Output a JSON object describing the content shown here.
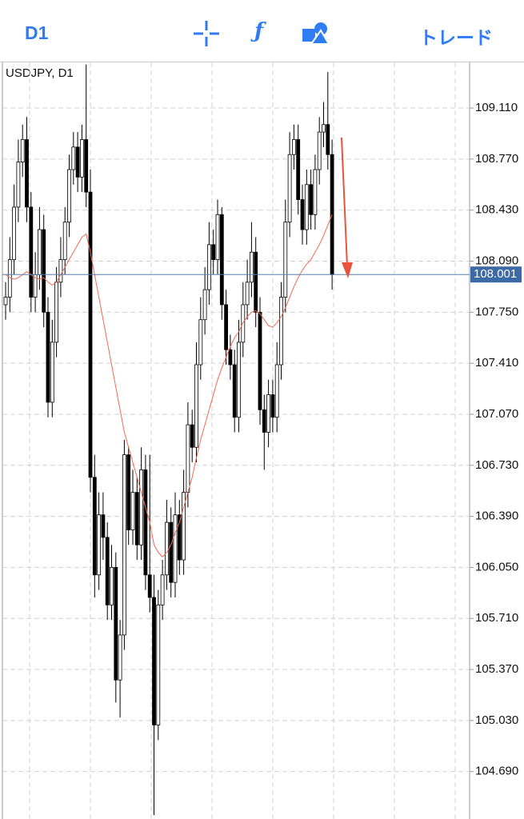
{
  "toolbar": {
    "timeframe": "D1",
    "trade": "トレード"
  },
  "chart_data": {
    "type": "candlestick",
    "title": "USDJPY, D1",
    "open": [
      107.8,
      107.85,
      108.1,
      108.45,
      108.75,
      108.9,
      108.45,
      107.85,
      108.0,
      108.3,
      107.75,
      107.15,
      107.55,
      107.95,
      108.1,
      108.35,
      108.7,
      108.85,
      108.65,
      108.9,
      108.55,
      106.65,
      106.0,
      106.4,
      106.25,
      105.8,
      106.05,
      105.3,
      105.6,
      106.8,
      106.3,
      106.55,
      106.2,
      106.7,
      106.0,
      105.85,
      105.0,
      105.8,
      106.0,
      106.35,
      105.95,
      106.4,
      106.1,
      106.55,
      107.0,
      106.85,
      107.4,
      107.7,
      107.9,
      108.2,
      108.1,
      108.4,
      107.8,
      107.5,
      107.4,
      107.05,
      107.55,
      107.8,
      107.95,
      108.15,
      107.75,
      107.1,
      106.95,
      107.2,
      107.05,
      107.4,
      107.85,
      108.35,
      108.8,
      108.9,
      108.5,
      108.3,
      108.6,
      108.4,
      108.7,
      108.95,
      109.0,
      108.8
    ],
    "high": [
      107.95,
      108.25,
      108.6,
      108.9,
      109.0,
      109.05,
      108.55,
      108.15,
      108.45,
      108.4,
      107.85,
      107.7,
      108.05,
      108.25,
      108.45,
      108.8,
      108.95,
      108.95,
      109.0,
      109.4,
      108.7,
      106.8,
      106.55,
      106.55,
      106.35,
      106.2,
      106.15,
      105.7,
      106.9,
      106.85,
      106.7,
      106.65,
      106.85,
      106.8,
      106.8,
      106.0,
      105.9,
      106.1,
      106.5,
      106.45,
      106.55,
      106.5,
      106.7,
      107.15,
      107.1,
      107.55,
      107.85,
      108.05,
      108.35,
      108.3,
      108.5,
      108.45,
      107.9,
      107.6,
      107.5,
      107.7,
      107.95,
      108.1,
      108.35,
      108.25,
      107.85,
      107.2,
      107.3,
      107.3,
      107.55,
      107.95,
      108.5,
      108.95,
      109.0,
      109.0,
      108.6,
      108.7,
      108.7,
      108.8,
      109.05,
      109.15,
      109.35,
      108.9
    ],
    "low": [
      107.7,
      107.75,
      108.0,
      108.35,
      108.65,
      108.35,
      107.75,
      107.75,
      107.9,
      107.65,
      107.05,
      107.05,
      107.45,
      107.85,
      108.0,
      108.25,
      108.6,
      108.55,
      108.55,
      108.45,
      106.55,
      105.85,
      105.9,
      106.1,
      105.7,
      105.7,
      105.15,
      105.05,
      105.5,
      106.2,
      106.2,
      106.1,
      106.1,
      105.9,
      105.75,
      104.4,
      104.9,
      105.7,
      105.9,
      105.85,
      105.85,
      106.0,
      106.0,
      106.45,
      106.75,
      106.75,
      107.3,
      107.6,
      107.8,
      108.0,
      108.0,
      107.7,
      107.4,
      107.3,
      106.95,
      106.95,
      107.45,
      107.7,
      107.85,
      107.65,
      107.0,
      106.7,
      106.85,
      106.95,
      106.95,
      107.3,
      107.75,
      108.25,
      108.7,
      108.4,
      108.2,
      108.2,
      108.3,
      108.3,
      108.6,
      108.85,
      108.7,
      107.9
    ],
    "close": [
      107.85,
      108.1,
      108.45,
      108.75,
      108.9,
      108.45,
      107.85,
      108.0,
      108.3,
      107.75,
      107.15,
      107.55,
      107.95,
      108.1,
      108.35,
      108.7,
      108.85,
      108.65,
      108.9,
      108.55,
      106.65,
      106.0,
      106.4,
      106.25,
      105.8,
      106.05,
      105.3,
      105.6,
      106.8,
      106.3,
      106.55,
      106.2,
      106.7,
      106.0,
      105.85,
      105.0,
      105.8,
      106.0,
      106.35,
      105.95,
      106.4,
      106.1,
      106.55,
      107.0,
      106.85,
      107.4,
      107.7,
      107.9,
      108.2,
      108.1,
      108.4,
      107.8,
      107.5,
      107.4,
      107.05,
      107.55,
      107.8,
      107.95,
      108.15,
      107.75,
      107.1,
      106.95,
      107.2,
      107.05,
      107.4,
      107.85,
      108.35,
      108.8,
      108.9,
      108.5,
      108.3,
      108.6,
      108.4,
      108.7,
      108.95,
      109.0,
      108.8,
      108.0
    ],
    "ma": {
      "color": "#f06a50",
      "values": [
        108.0,
        107.98,
        107.97,
        107.98,
        108.0,
        108.02,
        108.0,
        107.98,
        107.97,
        107.98,
        107.95,
        107.93,
        107.95,
        108.0,
        108.05,
        108.1,
        108.15,
        108.2,
        108.25,
        108.27,
        108.15,
        108.0,
        107.85,
        107.7,
        107.55,
        107.4,
        107.25,
        107.1,
        106.95,
        106.85,
        106.75,
        106.65,
        106.55,
        106.45,
        106.35,
        106.2,
        106.15,
        106.12,
        106.15,
        106.2,
        106.28,
        106.35,
        106.45,
        106.55,
        106.65,
        106.78,
        106.9,
        107.0,
        107.1,
        107.2,
        107.3,
        107.38,
        107.45,
        107.52,
        107.58,
        107.62,
        107.68,
        107.72,
        107.75,
        107.76,
        107.74,
        107.7,
        107.66,
        107.65,
        107.68,
        107.72,
        107.78,
        107.85,
        107.92,
        107.98,
        108.03,
        108.07,
        108.1,
        108.15,
        108.2,
        108.26,
        108.33,
        108.4
      ]
    },
    "current_price": 108.001,
    "ylim": [
      104.374,
      109.414
    ],
    "yticks": [
      {
        "value": 109.11,
        "label": "109.110"
      },
      {
        "value": 108.77,
        "label": "108.770"
      },
      {
        "value": 108.43,
        "label": "108.430"
      },
      {
        "value": 108.09,
        "label": "108.090"
      },
      {
        "value": 107.75,
        "label": "107.750"
      },
      {
        "value": 107.41,
        "label": "107.410"
      },
      {
        "value": 107.07,
        "label": "107.070"
      },
      {
        "value": 106.73,
        "label": "106.730"
      },
      {
        "value": 106.39,
        "label": "106.390"
      },
      {
        "value": 106.05,
        "label": "106.050"
      },
      {
        "value": 105.71,
        "label": "105.710"
      },
      {
        "value": 105.37,
        "label": "105.370"
      },
      {
        "value": 105.03,
        "label": "105.030"
      },
      {
        "value": 104.69,
        "label": "104.690"
      }
    ],
    "grid": true
  }
}
